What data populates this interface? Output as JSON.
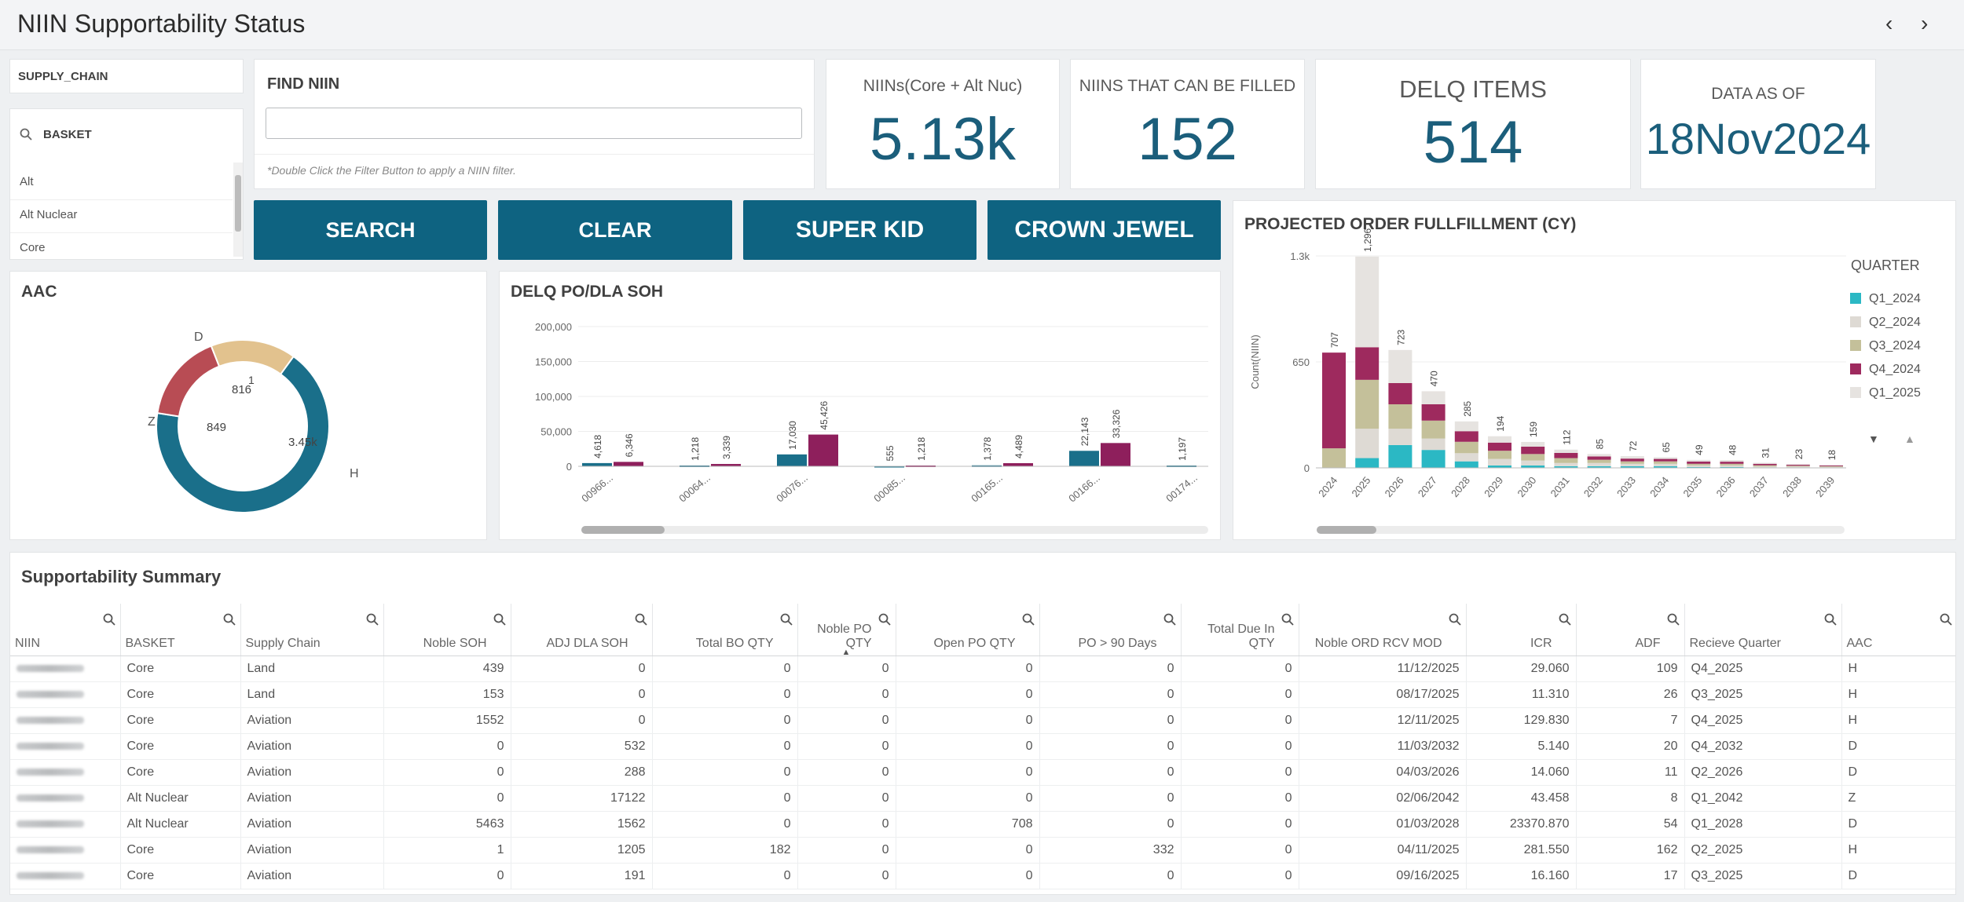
{
  "header": {
    "title": "NIIN Supportability Status",
    "prev_icon": "‹",
    "next_icon": "›"
  },
  "filters": {
    "supply_chain_label": "SUPPLY_CHAIN",
    "basket_label": "BASKET",
    "basket_items": [
      "Alt",
      "Alt Nuclear",
      "Core"
    ]
  },
  "find": {
    "label": "FIND NIIN",
    "value": "",
    "placeholder": "",
    "hint": "*Double Click the Filter Button to apply a NIIN filter."
  },
  "kpis": [
    {
      "label": "NIINs(Core + Alt Nuc)",
      "value": "5.13k"
    },
    {
      "label": "NIINS THAT CAN BE FILLED",
      "value": "152"
    },
    {
      "label": "DELQ ITEMS",
      "value": "514"
    },
    {
      "label": "DATA AS OF",
      "value": "18Nov2024"
    }
  ],
  "buttons": {
    "search": "SEARCH",
    "clear": "CLEAR",
    "super_kid": "SUPER KID",
    "crown_jewel": "CROWN JEWEL"
  },
  "colors": {
    "accent": "#0e6381",
    "teal": "#1a6f8a",
    "magenta": "#8e1f5c",
    "d_slice": "#e2c28e",
    "z_slice": "#b84c54",
    "h_slice": "#1a6f8a"
  },
  "aac": {
    "title": "AAC",
    "chart_data": {
      "type": "pie",
      "labels": [
        "H",
        "Z",
        "D"
      ],
      "values": [
        3450,
        849,
        816
      ],
      "value_labels": [
        "3.45k",
        "849",
        "816"
      ],
      "inner_label": "1"
    }
  },
  "delq": {
    "title": "DELQ PO/DLA SOH",
    "chart_data": {
      "type": "bar",
      "categories": [
        "00966...",
        "00064...",
        "00076...",
        "00085...",
        "00165...",
        "00166...",
        "00174..."
      ],
      "series": [
        {
          "values": [
            4618,
            1218,
            17030,
            555,
            1378,
            22143,
            1197
          ],
          "labels": [
            "4,618",
            "1,218",
            "17,030",
            "555",
            "1,378",
            "22,143",
            "1,197"
          ]
        },
        {
          "values": [
            6346,
            3339,
            45426,
            1218,
            4489,
            33326,
            null
          ],
          "labels": [
            "6,346",
            "3,339",
            "45,426",
            "1,218",
            "4,489",
            "33,326",
            ""
          ]
        }
      ],
      "yticks": [
        "0",
        "50,000",
        "100,000",
        "150,000",
        "200,000"
      ],
      "ylim": [
        0,
        200000
      ]
    }
  },
  "projected": {
    "title": "PROJECTED ORDER FULLFILLMENT (CY)",
    "chart_data": {
      "type": "bar",
      "stacked": true,
      "ylabel": "Count(NIIN)",
      "yticks": [
        "0",
        "650",
        "1.3k"
      ],
      "ylim": [
        0,
        1300
      ],
      "categories": [
        "2024",
        "2025",
        "2026",
        "2027",
        "2028",
        "2029",
        "2030",
        "2031",
        "2032",
        "2033",
        "2034",
        "2035",
        "2036",
        "2037",
        "2038",
        "2039"
      ],
      "totals": [
        707,
        1296,
        723,
        470,
        285,
        194,
        159,
        112,
        85,
        72,
        65,
        49,
        48,
        31,
        23,
        18
      ],
      "total_labels": [
        "707",
        "1,296",
        "723",
        "470",
        "285",
        "194",
        "159",
        "112",
        "85",
        "72",
        "65",
        "49",
        "48",
        "31",
        "23",
        "18"
      ],
      "series": [
        {
          "name": "Q1_2024",
          "color": "#2bb8c4",
          "values": [
            0,
            60,
            140,
            110,
            40,
            15,
            15,
            10,
            10,
            10,
            10,
            5,
            5,
            3,
            3,
            2
          ]
        },
        {
          "name": "Q2_2024",
          "color": "#dedad4",
          "values": [
            0,
            180,
            100,
            70,
            50,
            40,
            30,
            20,
            20,
            15,
            15,
            10,
            10,
            6,
            5,
            4
          ]
        },
        {
          "name": "Q3_2024",
          "color": "#c4c09a",
          "values": [
            120,
            300,
            150,
            110,
            70,
            50,
            40,
            30,
            20,
            15,
            15,
            10,
            10,
            7,
            5,
            4
          ]
        },
        {
          "name": "Q4_2024",
          "color": "#9e2a5e",
          "values": [
            587,
            200,
            130,
            100,
            65,
            50,
            45,
            32,
            20,
            17,
            15,
            14,
            13,
            9,
            6,
            5
          ]
        },
        {
          "name": "Q1_2025",
          "color": "#e6e3e0",
          "values": [
            0,
            556,
            203,
            80,
            60,
            39,
            29,
            20,
            15,
            15,
            10,
            10,
            10,
            6,
            4,
            3
          ]
        }
      ],
      "legend_title": "QUARTER",
      "legend_position": "right"
    }
  },
  "summary": {
    "title": "Supportability Summary",
    "columns": [
      "NIIN",
      "BASKET",
      "Supply Chain",
      "Noble SOH",
      "ADJ DLA SOH",
      "Total BO QTY",
      "Noble PO QTY",
      "Open PO QTY",
      "PO > 90 Days",
      "Total Due In QTY",
      "Noble ORD RCV MOD",
      "ICR",
      "ADF",
      "Recieve Quarter",
      "AAC"
    ],
    "rows": [
      [
        "",
        "Core",
        "Land",
        "439",
        "0",
        "0",
        "0",
        "0",
        "0",
        "0",
        "11/12/2025",
        "29.060",
        "109",
        "Q4_2025",
        "H"
      ],
      [
        "",
        "Core",
        "Land",
        "153",
        "0",
        "0",
        "0",
        "0",
        "0",
        "0",
        "08/17/2025",
        "11.310",
        "26",
        "Q3_2025",
        "H"
      ],
      [
        "",
        "Core",
        "Aviation",
        "1552",
        "0",
        "0",
        "0",
        "0",
        "0",
        "0",
        "12/11/2025",
        "129.830",
        "7",
        "Q4_2025",
        "H"
      ],
      [
        "",
        "Core",
        "Aviation",
        "0",
        "532",
        "0",
        "0",
        "0",
        "0",
        "0",
        "11/03/2032",
        "5.140",
        "20",
        "Q4_2032",
        "D"
      ],
      [
        "",
        "Core",
        "Aviation",
        "0",
        "288",
        "0",
        "0",
        "0",
        "0",
        "0",
        "04/03/2026",
        "14.060",
        "11",
        "Q2_2026",
        "D"
      ],
      [
        "",
        "Alt Nuclear",
        "Aviation",
        "0",
        "17122",
        "0",
        "0",
        "0",
        "0",
        "0",
        "02/06/2042",
        "43.458",
        "8",
        "Q1_2042",
        "Z"
      ],
      [
        "",
        "Alt Nuclear",
        "Aviation",
        "5463",
        "1562",
        "0",
        "0",
        "708",
        "0",
        "0",
        "01/03/2028",
        "23370.870",
        "54",
        "Q1_2028",
        "D"
      ],
      [
        "",
        "Core",
        "Aviation",
        "1",
        "1205",
        "182",
        "0",
        "0",
        "332",
        "0",
        "04/11/2025",
        "281.550",
        "162",
        "Q2_2025",
        "H"
      ],
      [
        "",
        "Core",
        "Aviation",
        "0",
        "191",
        "0",
        "0",
        "0",
        "0",
        "0",
        "09/16/2025",
        "16.160",
        "17",
        "Q3_2025",
        "D"
      ]
    ]
  }
}
